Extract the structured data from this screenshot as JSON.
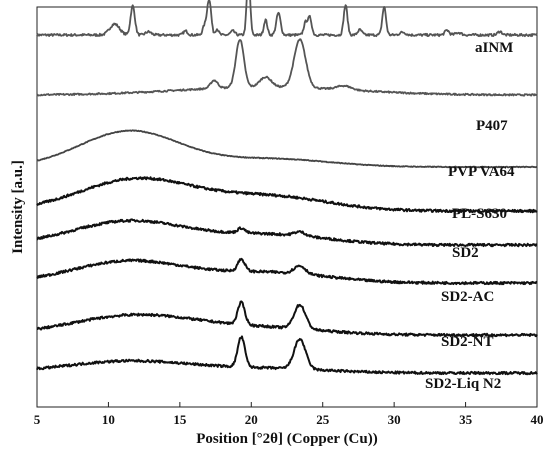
{
  "chart_data": {
    "type": "line",
    "title": "",
    "xlabel": "Position [°2θ] (Copper (Cu))",
    "ylabel": "Intensity [a.u.]",
    "xlim": [
      5,
      40
    ],
    "x_ticks": [
      5,
      10,
      15,
      20,
      25,
      30,
      35,
      40
    ],
    "grid": false,
    "legend": "labels at right of each trace",
    "series": [
      {
        "name": "aINM",
        "color": "#555555",
        "baseline": 0.93,
        "noise": 0.006,
        "halo": null,
        "peaks": [
          {
            "x": 10.3,
            "h": 0.017,
            "w": 0.3
          },
          {
            "x": 10.6,
            "h": 0.014,
            "w": 0.3
          },
          {
            "x": 11.7,
            "h": 0.073,
            "w": 0.15
          },
          {
            "x": 12.8,
            "h": 0.008,
            "w": 0.2
          },
          {
            "x": 15.4,
            "h": 0.01,
            "w": 0.15
          },
          {
            "x": 16.7,
            "h": 0.02,
            "w": 0.12
          },
          {
            "x": 16.95,
            "h": 0.044,
            "w": 0.12
          },
          {
            "x": 17.1,
            "h": 0.064,
            "w": 0.12
          },
          {
            "x": 17.6,
            "h": 0.015,
            "w": 0.12
          },
          {
            "x": 18.7,
            "h": 0.01,
            "w": 0.15
          },
          {
            "x": 19.8,
            "h": 0.147,
            "w": 0.12
          },
          {
            "x": 21.0,
            "h": 0.038,
            "w": 0.12
          },
          {
            "x": 21.9,
            "h": 0.055,
            "w": 0.15
          },
          {
            "x": 23.8,
            "h": 0.031,
            "w": 0.13
          },
          {
            "x": 24.1,
            "h": 0.043,
            "w": 0.13
          },
          {
            "x": 26.6,
            "h": 0.075,
            "w": 0.13
          },
          {
            "x": 27.6,
            "h": 0.013,
            "w": 0.15
          },
          {
            "x": 29.3,
            "h": 0.07,
            "w": 0.13
          },
          {
            "x": 30.6,
            "h": 0.007,
            "w": 0.2
          },
          {
            "x": 33.7,
            "h": 0.012,
            "w": 0.15
          },
          {
            "x": 34.5,
            "h": 0.006,
            "w": 0.2
          },
          {
            "x": 37.4,
            "h": 0.009,
            "w": 0.15
          }
        ]
      },
      {
        "name": "P407",
        "color": "#555555",
        "baseline": 0.78,
        "noise": 0.004,
        "halo": {
          "x": 21,
          "h": 0.02,
          "w": 6
        },
        "peaks": [
          {
            "x": 17.4,
            "h": 0.02,
            "w": 0.25
          },
          {
            "x": 19.2,
            "h": 0.12,
            "w": 0.28
          },
          {
            "x": 21.0,
            "h": 0.025,
            "w": 0.4
          },
          {
            "x": 23.4,
            "h": 0.12,
            "w": 0.4
          },
          {
            "x": 26.5,
            "h": 0.01,
            "w": 0.5
          }
        ]
      },
      {
        "name": "PVP VA64",
        "color": "#444444",
        "baseline": 0.6,
        "noise": 0.002,
        "halo": {
          "x": 11.5,
          "h": 0.09,
          "w": 3.5
        },
        "halo2": {
          "x": 21.5,
          "h": 0.02,
          "w": 4
        },
        "peaks": []
      },
      {
        "name": "PL-S630",
        "color": "#111111",
        "baseline": 0.49,
        "noise": 0.006,
        "halo": {
          "x": 12,
          "h": 0.08,
          "w": 4
        },
        "halo2": {
          "x": 21.5,
          "h": 0.035,
          "w": 4
        },
        "peaks": []
      },
      {
        "name": "SD2",
        "color": "#111111",
        "baseline": 0.405,
        "noise": 0.006,
        "halo": {
          "x": 11.5,
          "h": 0.06,
          "w": 4
        },
        "halo2": {
          "x": 21.5,
          "h": 0.025,
          "w": 4
        },
        "peaks": [
          {
            "x": 19.3,
            "h": 0.012,
            "w": 0.25
          },
          {
            "x": 23.4,
            "h": 0.01,
            "w": 0.4
          }
        ]
      },
      {
        "name": "SD2-AC",
        "color": "#111111",
        "baseline": 0.31,
        "noise": 0.006,
        "halo": {
          "x": 11.5,
          "h": 0.055,
          "w": 4
        },
        "halo2": {
          "x": 21.5,
          "h": 0.025,
          "w": 4
        },
        "peaks": [
          {
            "x": 19.3,
            "h": 0.03,
            "w": 0.25
          },
          {
            "x": 23.4,
            "h": 0.02,
            "w": 0.4
          }
        ]
      },
      {
        "name": "SD2-NT",
        "color": "#111111",
        "baseline": 0.18,
        "noise": 0.006,
        "halo": {
          "x": 12,
          "h": 0.05,
          "w": 4.5
        },
        "halo2": {
          "x": 21.5,
          "h": 0.015,
          "w": 4
        },
        "peaks": [
          {
            "x": 19.3,
            "h": 0.055,
            "w": 0.25
          },
          {
            "x": 23.4,
            "h": 0.06,
            "w": 0.4
          }
        ]
      },
      {
        "name": "SD2-Liq N2",
        "color": "#111111",
        "baseline": 0.085,
        "noise": 0.006,
        "halo": {
          "x": 11.5,
          "h": 0.03,
          "w": 4.5
        },
        "halo2": {
          "x": 21.5,
          "h": 0.01,
          "w": 4
        },
        "peaks": [
          {
            "x": 19.3,
            "h": 0.075,
            "w": 0.25
          },
          {
            "x": 23.4,
            "h": 0.075,
            "w": 0.4
          }
        ]
      }
    ]
  }
}
